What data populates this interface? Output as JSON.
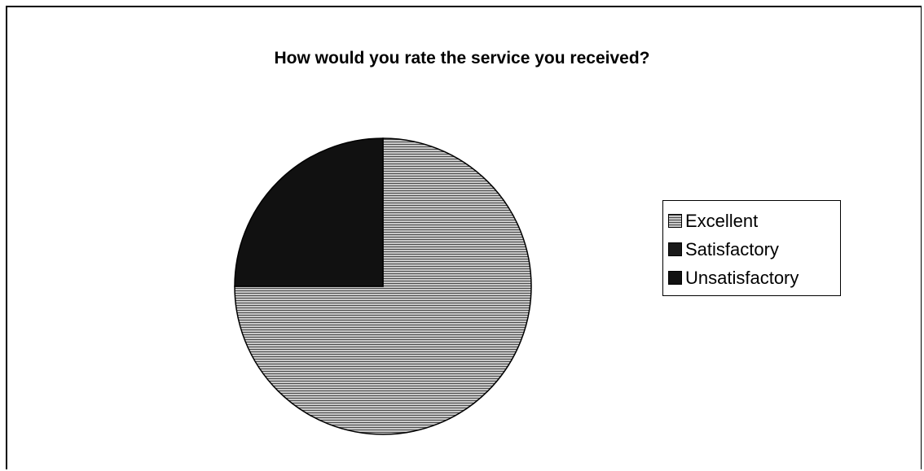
{
  "chart_data": {
    "type": "pie",
    "title": "How would you rate the service you received?",
    "categories": [
      "Excellent",
      "Satisfactory",
      "Unsatisfactory"
    ],
    "values": [
      75,
      0,
      25
    ],
    "unit": "%",
    "start_angle_deg": 0,
    "direction": "clockwise",
    "legend": {
      "position": "right",
      "entries": [
        "Excellent",
        "Satisfactory",
        "Unsatisfactory"
      ]
    }
  },
  "colors": {
    "Excellent": "#9a9a9a",
    "Satisfactory": "#1a1a1a",
    "Unsatisfactory": "#111111",
    "background": "#ffffff",
    "border": "#000000"
  }
}
